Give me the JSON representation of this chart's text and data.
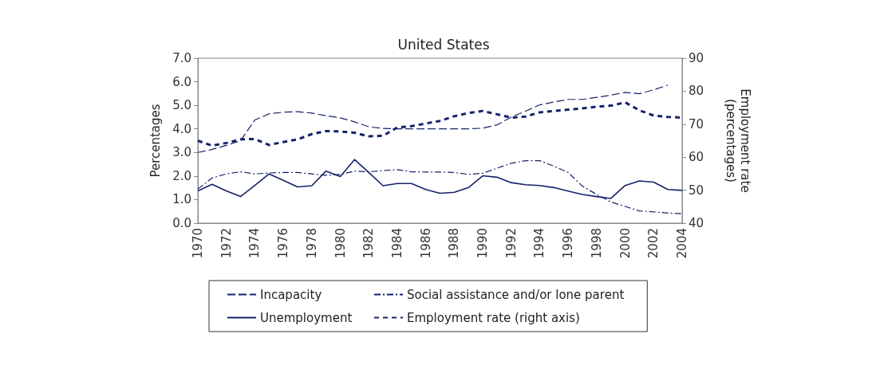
{
  "chart_data": {
    "type": "line",
    "title": "United States",
    "ylabel": "Percentages",
    "y2label": "Employment rate\n(percentages)",
    "categories": [
      "1970",
      null,
      "1972",
      null,
      "1974",
      null,
      "1976",
      null,
      "1978",
      null,
      "1980",
      null,
      "1982",
      null,
      "1984",
      null,
      "1986",
      null,
      "1988",
      null,
      "1990",
      null,
      "1992",
      null,
      "1994",
      null,
      "1996",
      null,
      "1998",
      null,
      "2000",
      null,
      "2002",
      null,
      "2004"
    ],
    "series": [
      {
        "name": "Incapacity",
        "color": "#15226a",
        "line_style": "dashed",
        "values": [
          3.0,
          3.13,
          3.3,
          3.5,
          4.38,
          4.64,
          4.71,
          4.73,
          4.67,
          4.56,
          4.47,
          4.3,
          4.09,
          4.02,
          4.0,
          4.0,
          4.0,
          4.0,
          4.0,
          4.0,
          4.03,
          4.17,
          4.5,
          4.75,
          5.02,
          5.14,
          5.25,
          5.25,
          5.34,
          5.43,
          5.55,
          5.49,
          5.66,
          5.86,
          null
        ]
      },
      {
        "name": "Social assistance and/or lone parent",
        "color": "#15226a",
        "line_style": "dashdot",
        "values": [
          1.45,
          1.92,
          2.09,
          2.18,
          2.09,
          2.13,
          2.15,
          2.15,
          2.09,
          2.03,
          2.07,
          2.21,
          2.18,
          2.23,
          2.27,
          2.18,
          2.17,
          2.17,
          2.15,
          2.07,
          2.12,
          2.33,
          2.54,
          2.65,
          2.65,
          2.42,
          2.15,
          1.57,
          1.22,
          0.9,
          0.71,
          0.52,
          0.48,
          0.43,
          0.4
        ]
      },
      {
        "name": "Unemployment",
        "color": "#15226a",
        "line_style": "solid",
        "values": [
          1.37,
          1.65,
          1.37,
          1.13,
          1.6,
          2.09,
          1.82,
          1.54,
          1.59,
          2.21,
          1.98,
          2.7,
          2.15,
          1.59,
          1.68,
          1.68,
          1.43,
          1.27,
          1.31,
          1.51,
          2.01,
          1.95,
          1.72,
          1.63,
          1.6,
          1.51,
          1.36,
          1.22,
          1.13,
          1.05,
          1.6,
          1.79,
          1.74,
          1.43,
          1.39
        ]
      },
      {
        "name": "Employment rate (right axis)",
        "color": "#15226a",
        "line_style": "dashed",
        "axis": "y2",
        "values": [
          65.0,
          63.5,
          64.3,
          65.4,
          65.5,
          63.7,
          64.6,
          65.4,
          67.0,
          67.9,
          67.8,
          67.4,
          66.3,
          66.5,
          69.0,
          69.4,
          70.2,
          71.0,
          72.4,
          73.4,
          74.0,
          73.0,
          72.0,
          72.3,
          73.6,
          74.0,
          74.4,
          74.8,
          75.3,
          75.6,
          76.6,
          74.2,
          72.6,
          72.2,
          72.0
        ]
      }
    ],
    "ylim": [
      0,
      7
    ],
    "yticks": [
      {
        "value": 0,
        "label": "0.0"
      },
      {
        "value": 1,
        "label": "1.0"
      },
      {
        "value": 2,
        "label": "2.0"
      },
      {
        "value": 3,
        "label": "3.0"
      },
      {
        "value": 4,
        "label": "4.0"
      },
      {
        "value": 5,
        "label": "5.0"
      },
      {
        "value": 6,
        "label": "6.0"
      },
      {
        "value": 7,
        "label": "7.0"
      }
    ],
    "y2lim": [
      40,
      90
    ],
    "y2ticks": [
      40,
      50,
      60,
      70,
      80,
      90
    ],
    "grid": false,
    "legend": "bottom",
    "marker": "none"
  }
}
